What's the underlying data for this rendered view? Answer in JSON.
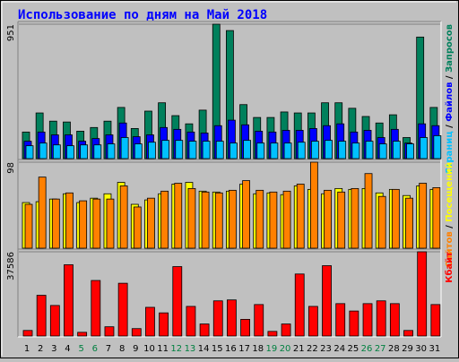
{
  "chart_data": [
    {
      "type": "bar",
      "title": "Использование по дням на Май 2018",
      "ylim": [
        0,
        951
      ],
      "yticks": [
        951
      ],
      "legend_separator": " / ",
      "series": [
        {
          "name": "Запросов",
          "color": "#00805c",
          "values": [
            188,
            323,
            265,
            259,
            194,
            220,
            265,
            362,
            213,
            336,
            395,
            304,
            246,
            343,
            951,
            906,
            382,
            291,
            291,
            330,
            323,
            323,
            395,
            395,
            356,
            298,
            252,
            310,
            149,
            860,
            362
          ]
        },
        {
          "name": "Файлов",
          "color": "#0000ff",
          "values": [
            123,
            188,
            168,
            168,
            123,
            142,
            168,
            252,
            155,
            168,
            220,
            207,
            188,
            181,
            233,
            272,
            239,
            194,
            188,
            200,
            200,
            213,
            233,
            246,
            188,
            200,
            149,
            207,
            110,
            246,
            233
          ]
        },
        {
          "name": "Страниц",
          "color": "#00c0ff",
          "values": [
            91,
            110,
            97,
            91,
            97,
            97,
            104,
            149,
            104,
            116,
            129,
            129,
            123,
            123,
            123,
            110,
            129,
            110,
            110,
            110,
            116,
            123,
            129,
            123,
            110,
            123,
            104,
            123,
            104,
            149,
            162
          ]
        }
      ]
    },
    {
      "type": "bar",
      "ylim": [
        0,
        98
      ],
      "yticks": [
        98
      ],
      "legend_separator": " / ",
      "series": [
        {
          "name": "Посещений",
          "color": "#ffff00",
          "values": [
            52,
            53,
            56,
            62,
            52,
            57,
            62,
            75,
            50,
            55,
            62,
            73,
            75,
            65,
            64,
            65,
            73,
            62,
            63,
            61,
            71,
            67,
            62,
            68,
            67,
            68,
            63,
            67,
            60,
            71,
            67
          ]
        },
        {
          "name": "Сайтов",
          "color": "#ff8000",
          "values": [
            50,
            81,
            56,
            63,
            54,
            56,
            56,
            71,
            47,
            57,
            65,
            74,
            68,
            64,
            63,
            66,
            77,
            66,
            64,
            65,
            73,
            98,
            66,
            64,
            68,
            85,
            59,
            67,
            57,
            74,
            69
          ]
        }
      ]
    },
    {
      "type": "bar",
      "ylim": [
        0,
        37586
      ],
      "yticks": [
        37586
      ],
      "categories": [
        "1",
        "2",
        "3",
        "4",
        "5",
        "6",
        "7",
        "8",
        "9",
        "10",
        "11",
        "12",
        "13",
        "14",
        "15",
        "16",
        "17",
        "18",
        "19",
        "20",
        "21",
        "22",
        "23",
        "24",
        "25",
        "26",
        "27",
        "28",
        "29",
        "30",
        "31"
      ],
      "category_colors": [
        "#000",
        "#000",
        "#000",
        "#000",
        "#008040",
        "#008040",
        "#000",
        "#000",
        "#000",
        "#000",
        "#000",
        "#008040",
        "#008040",
        "#000",
        "#000",
        "#000",
        "#000",
        "#000",
        "#008040",
        "#008040",
        "#000",
        "#000",
        "#000",
        "#000",
        "#000",
        "#008040",
        "#008040",
        "#000",
        "#000",
        "#000",
        "#000"
      ],
      "series": [
        {
          "name": "Кбайт",
          "color": "#ff0000",
          "values": [
            2478,
            18174,
            13630,
            31800,
            1652,
            24782,
            4130,
            23543,
            3304,
            12804,
            10326,
            30977,
            13217,
            5369,
            15695,
            16108,
            7435,
            14043,
            2065,
            5369,
            27673,
            13217,
            31390,
            14456,
            11152,
            14456,
            15695,
            14456,
            2478,
            37586,
            14043
          ]
        }
      ]
    }
  ]
}
